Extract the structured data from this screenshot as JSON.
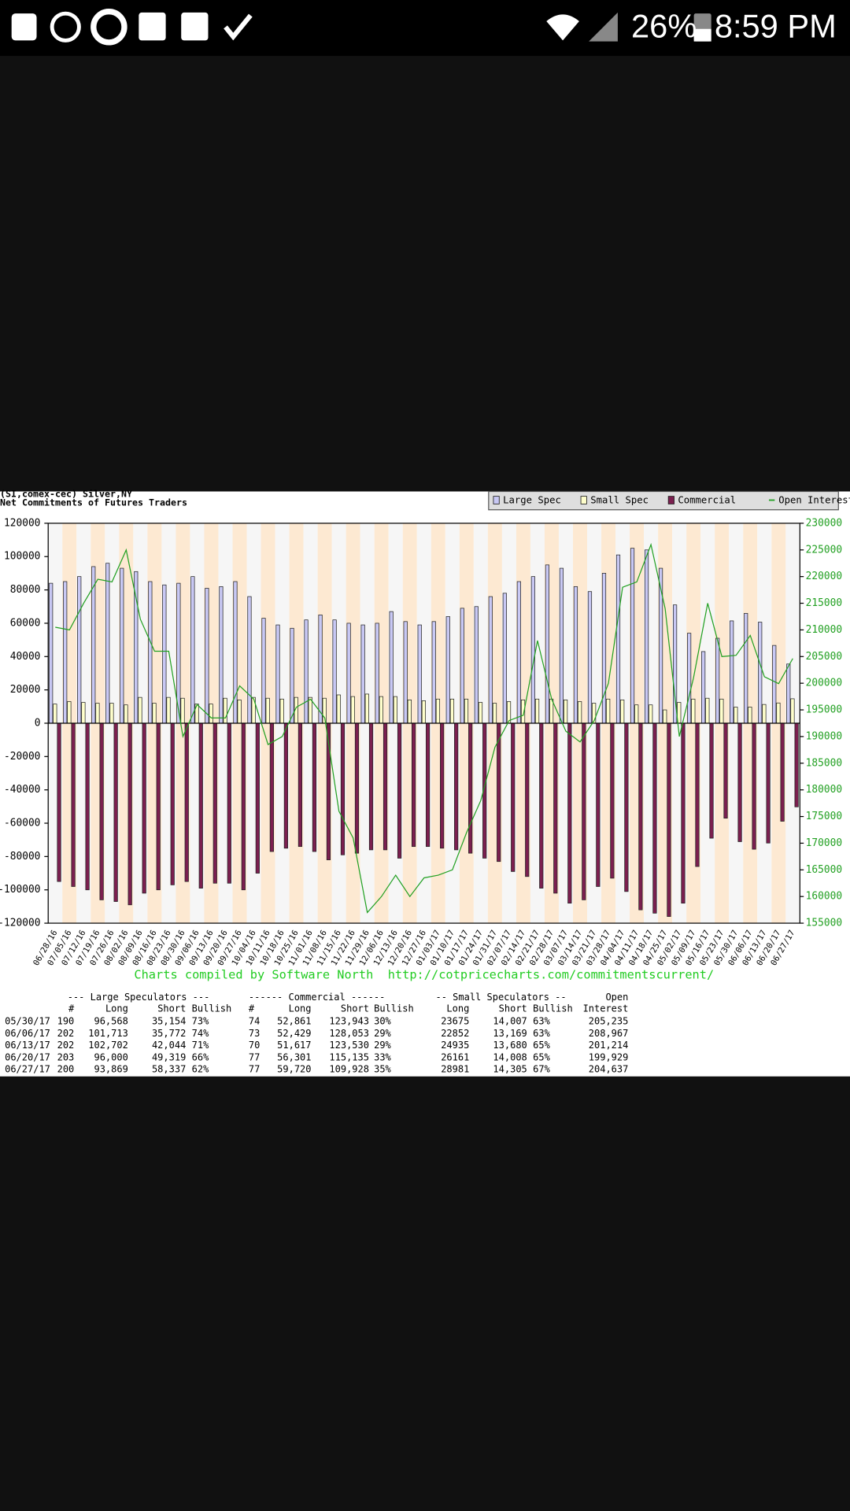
{
  "status_bar": {
    "battery": "26%",
    "time": "8:59 PM"
  },
  "chart_data": {
    "type": "bar",
    "title": "(SI,comex-cec) Silver,NY",
    "subtitle": "Net Commitments of Futures Traders",
    "footer": "Charts compiled by Software North  http://cotpricecharts.com/commitmentscurrent/",
    "legend": "top-right",
    "categories": [
      "06/28/16",
      "07/05/16",
      "07/12/16",
      "07/19/16",
      "07/26/16",
      "08/02/16",
      "08/09/16",
      "08/16/16",
      "08/23/16",
      "08/30/16",
      "09/06/16",
      "09/13/16",
      "09/20/16",
      "09/27/16",
      "10/04/16",
      "10/11/16",
      "10/18/16",
      "10/25/16",
      "11/01/16",
      "11/08/16",
      "11/15/16",
      "11/22/16",
      "11/29/16",
      "12/06/16",
      "12/13/16",
      "12/20/16",
      "12/27/16",
      "01/03/17",
      "01/10/17",
      "01/17/17",
      "01/24/17",
      "01/31/17",
      "02/07/17",
      "02/14/17",
      "02/21/17",
      "02/28/17",
      "03/07/17",
      "03/14/17",
      "03/21/17",
      "03/28/17",
      "04/04/17",
      "04/11/17",
      "04/18/17",
      "04/25/17",
      "05/02/17",
      "05/09/17",
      "05/16/17",
      "05/23/17",
      "05/30/17",
      "06/06/17",
      "06/13/17",
      "06/20/17",
      "06/27/17"
    ],
    "series": [
      {
        "name": "Large Spec",
        "color": "#c8c8f4",
        "values": [
          84000,
          85000,
          88000,
          94000,
          96000,
          93000,
          91000,
          85000,
          83000,
          84000,
          88000,
          81000,
          82000,
          85000,
          76000,
          63000,
          59000,
          57000,
          62000,
          65000,
          62000,
          60000,
          59000,
          60000,
          67000,
          61000,
          59000,
          61000,
          64000,
          69000,
          70000,
          76000,
          78000,
          85000,
          88000,
          95000,
          93000,
          82000,
          79000,
          90000,
          101000,
          105000,
          104000,
          93000,
          71000,
          54000,
          43000,
          51000,
          61414,
          65941,
          60658,
          46681,
          35532
        ]
      },
      {
        "name": "Small Spec",
        "color": "#ffffcc",
        "values": [
          11500,
          13000,
          12500,
          12000,
          12000,
          11000,
          15500,
          12000,
          15500,
          15000,
          11500,
          11500,
          15000,
          14000,
          15500,
          15000,
          14500,
          15500,
          15500,
          15000,
          17000,
          16000,
          17500,
          16000,
          16000,
          14000,
          13500,
          14500,
          14500,
          14500,
          12500,
          12000,
          13000,
          14000,
          14500,
          14500,
          14000,
          13000,
          12000,
          14500,
          14000,
          11000,
          11000,
          8000,
          12500,
          14500,
          15000,
          14500,
          9668,
          9683,
          11255,
          12153,
          14676
        ]
      },
      {
        "name": "Commercial",
        "color": "#7b1f4f",
        "values": [
          -95000,
          -98000,
          -100000,
          -106000,
          -107000,
          -109000,
          -102000,
          -100000,
          -97000,
          -95000,
          -99000,
          -96000,
          -96000,
          -100000,
          -90000,
          -77000,
          -75000,
          -74000,
          -77000,
          -82000,
          -79000,
          -78000,
          -76000,
          -76000,
          -81000,
          -74000,
          -74000,
          -75000,
          -76000,
          -78000,
          -81000,
          -83000,
          -89000,
          -92000,
          -99000,
          -102000,
          -108000,
          -106000,
          -98000,
          -93000,
          -101000,
          -112000,
          -114000,
          -116000,
          -108000,
          -86000,
          -69000,
          -57000,
          -71082,
          -75624,
          -71913,
          -58834,
          -50208
        ]
      },
      {
        "name": "Open Interest",
        "color": "#22a022",
        "type": "line",
        "axis": "y2",
        "values": [
          210500,
          210000,
          215000,
          219500,
          219000,
          225000,
          212000,
          206000,
          206000,
          190000,
          196000,
          193500,
          193500,
          199500,
          197000,
          188500,
          190000,
          195500,
          197000,
          193500,
          176000,
          171000,
          157000,
          160000,
          164000,
          160000,
          163500,
          164000,
          165000,
          172000,
          178000,
          188000,
          193000,
          194000,
          208000,
          197000,
          191000,
          189000,
          193000,
          200000,
          218000,
          219000,
          226000,
          214000,
          190000,
          201000,
          215000,
          205000,
          205235,
          208967,
          201214,
          199929,
          204637
        ]
      }
    ],
    "ylim": [
      -120000,
      120000
    ],
    "yticks": [
      -120000,
      -100000,
      -80000,
      -60000,
      -40000,
      -20000,
      0,
      20000,
      40000,
      60000,
      80000,
      100000,
      120000
    ],
    "y2lim": [
      155000,
      230000
    ],
    "y2ticks": [
      155000,
      160000,
      165000,
      170000,
      175000,
      180000,
      185000,
      190000,
      195000,
      200000,
      205000,
      210000,
      215000,
      220000,
      225000,
      230000
    ]
  },
  "table": {
    "group_headers": [
      "--- Large Speculators ---",
      "------ Commercial ------",
      "-- Small Speculators --",
      "Open"
    ],
    "columns": [
      "#",
      "Long",
      "Short",
      "Bullish",
      "#",
      "Long",
      "Short",
      "Bullish",
      "Long",
      "Short",
      "Bullish",
      "Interest"
    ],
    "rows": [
      [
        "05/30/17",
        "190",
        "96,568",
        "35,154",
        "73%",
        "74",
        "52,861",
        "123,943",
        "30%",
        "23675",
        "14,007",
        "63%",
        "205,235"
      ],
      [
        "06/06/17",
        "202",
        "101,713",
        "35,772",
        "74%",
        "73",
        "52,429",
        "128,053",
        "29%",
        "22852",
        "13,169",
        "63%",
        "208,967"
      ],
      [
        "06/13/17",
        "202",
        "102,702",
        "42,044",
        "71%",
        "70",
        "51,617",
        "123,530",
        "29%",
        "24935",
        "13,680",
        "65%",
        "201,214"
      ],
      [
        "06/20/17",
        "203",
        "96,000",
        "49,319",
        "66%",
        "77",
        "56,301",
        "115,135",
        "33%",
        "26161",
        "14,008",
        "65%",
        "199,929"
      ],
      [
        "06/27/17",
        "200",
        "93,869",
        "58,337",
        "62%",
        "77",
        "59,720",
        "109,928",
        "35%",
        "28981",
        "14,305",
        "67%",
        "204,637"
      ]
    ]
  }
}
